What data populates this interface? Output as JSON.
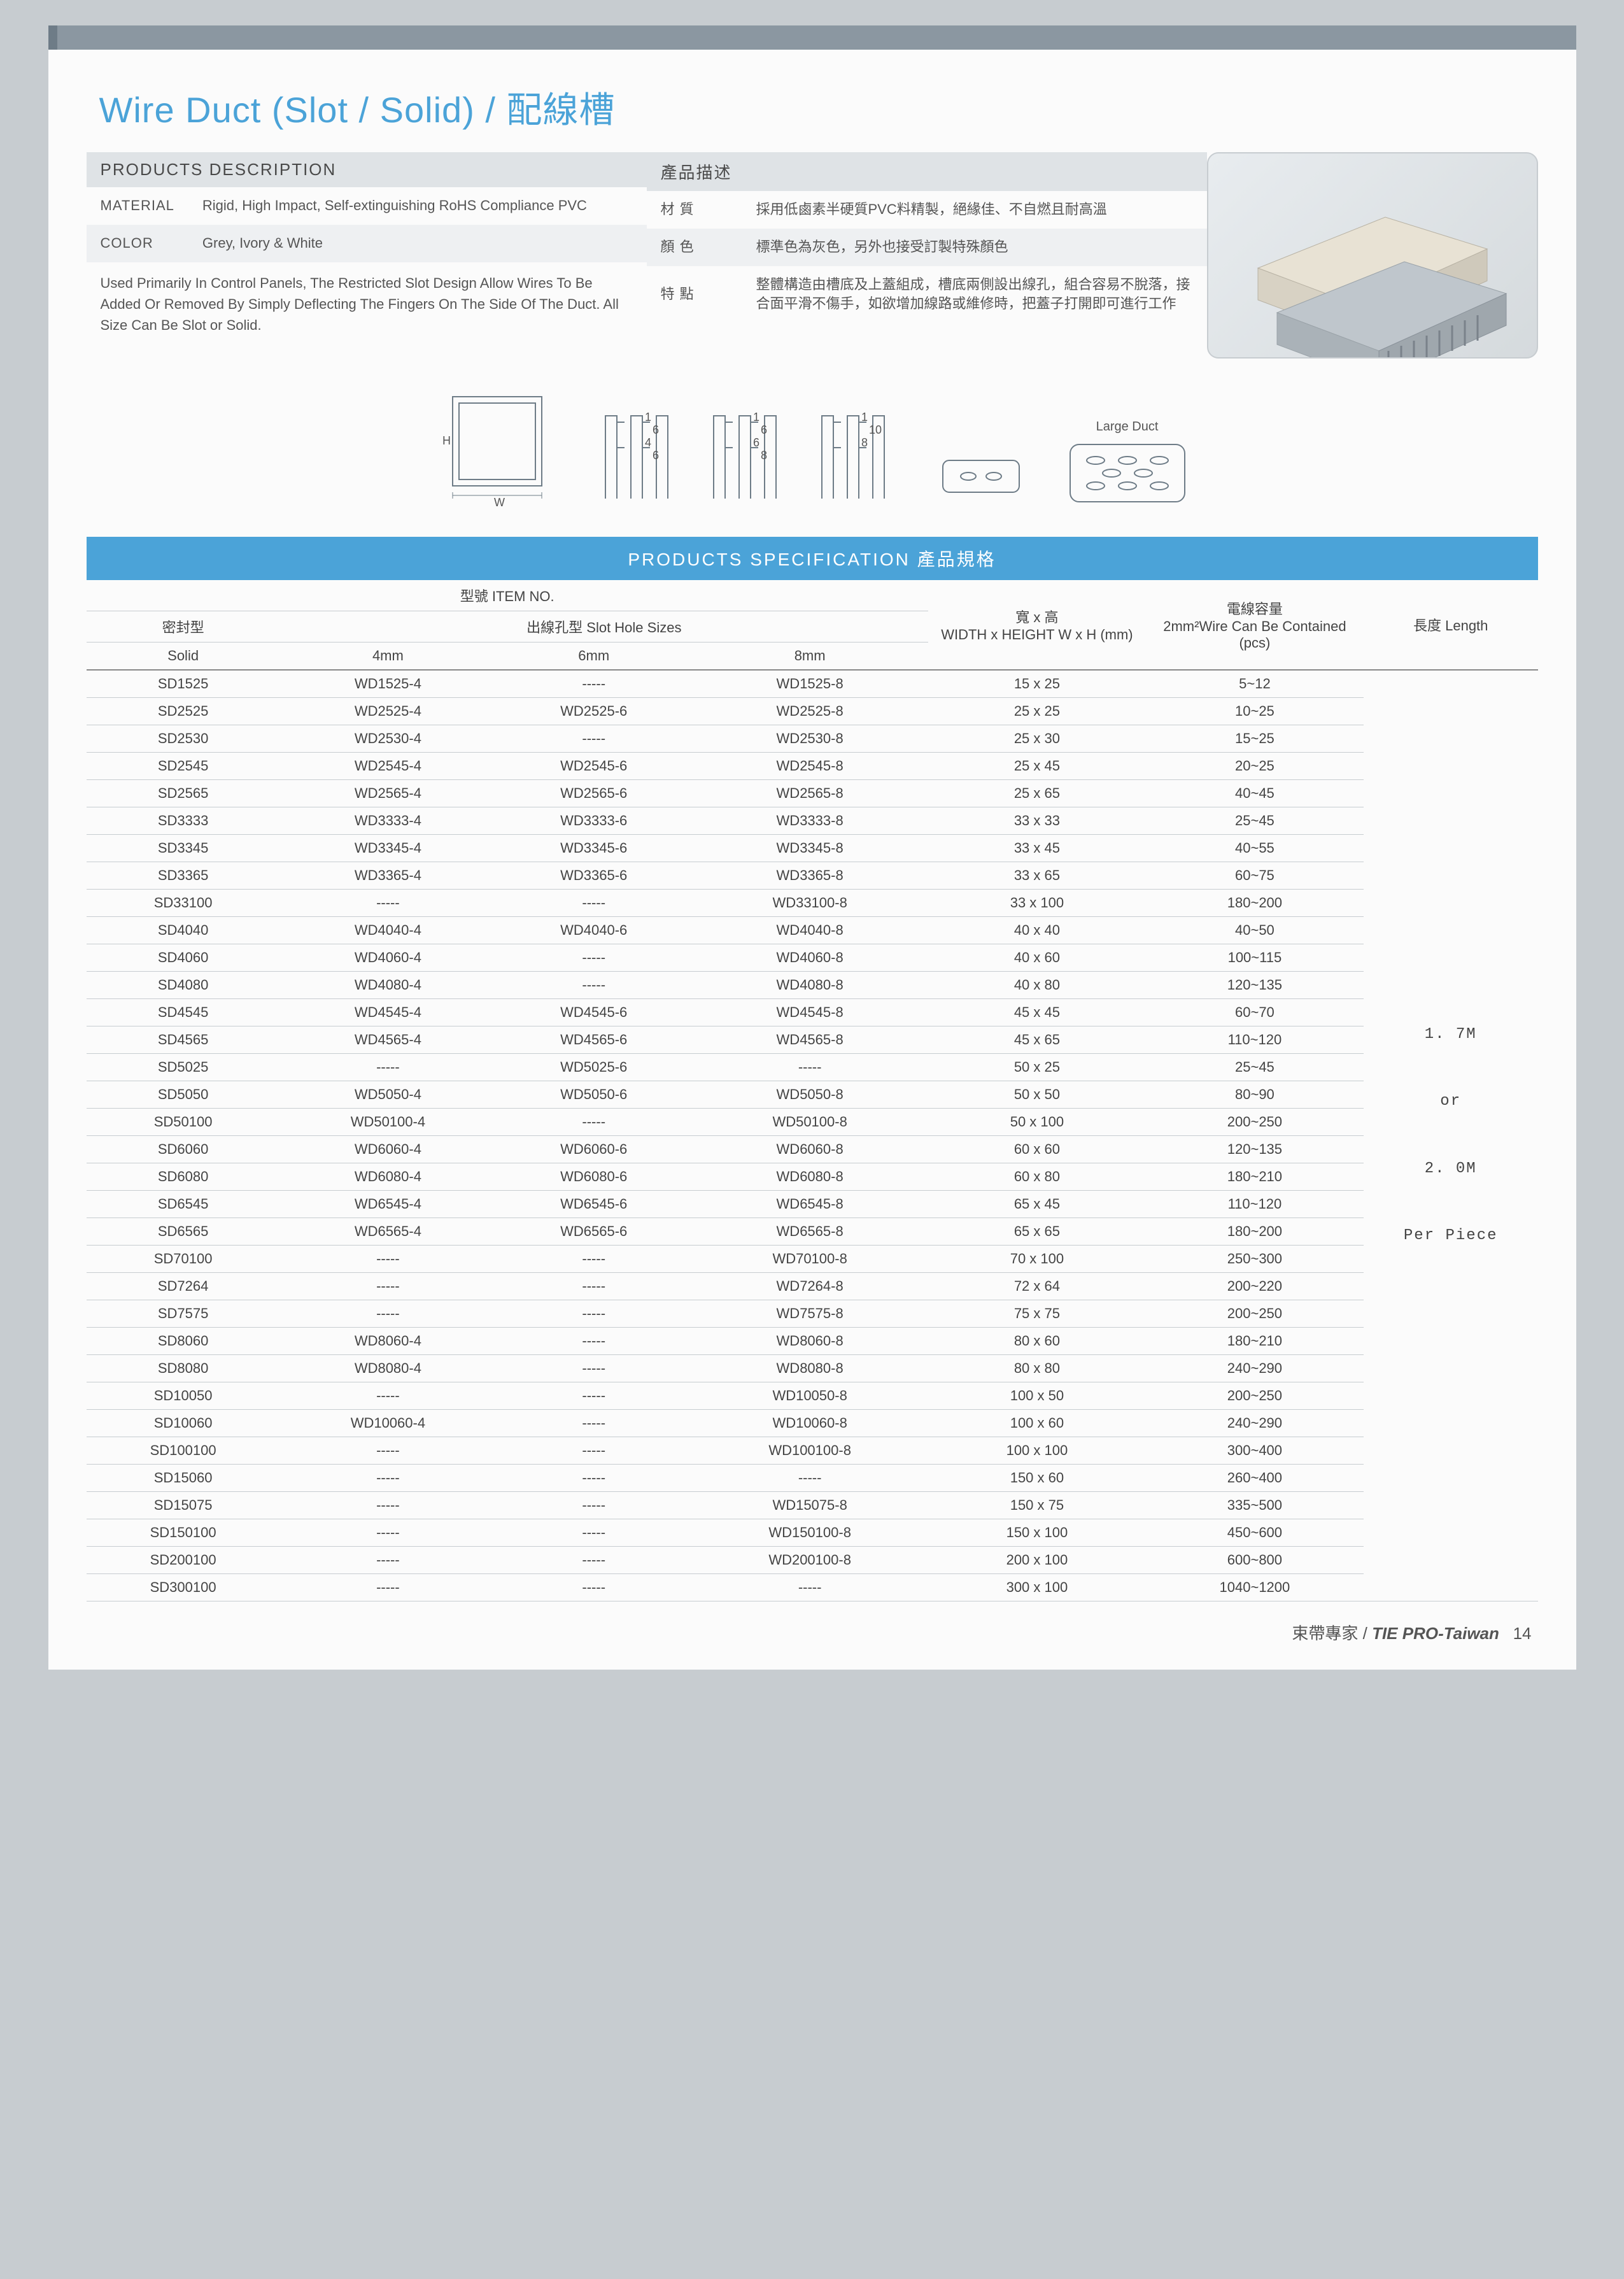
{
  "colors": {
    "accent": "#4ba3d8",
    "bar": "#8b97a1",
    "bg": "#c7ccd0",
    "headerGrey": "#dfe3e6"
  },
  "title_en": "Wire Duct (Slot / Solid)",
  "title_sep": " / ",
  "title_zh": "配線槽",
  "desc": {
    "en_header": "PRODUCTS DESCRIPTION",
    "zh_header": "產品描述",
    "rows": [
      {
        "en_lbl": "MATERIAL",
        "en_val": "Rigid, High Impact, Self-extinguishing RoHS Compliance PVC",
        "zh_lbl": "材 質",
        "zh_val": "採用低鹵素半硬質PVC料精製，絕緣佳、不自燃且耐高溫"
      },
      {
        "en_lbl": "COLOR",
        "en_val": "Grey, Ivory & White",
        "zh_lbl": "顏 色",
        "zh_val": "標準色為灰色，另外也接受訂製特殊顏色"
      }
    ],
    "en_note": "Used Primarily In Control Panels, The Restricted Slot Design Allow Wires To Be Added Or Removed By Simply Deflecting The Fingers On The Side Of The Duct. All Size Can Be Slot or Solid.",
    "zh_note_lbl": "特 點",
    "zh_note": "整體構造由槽底及上蓋組成，槽底兩側設出線孔，組合容易不脫落，接合面平滑不傷手，如欲增加線路或維修時，把蓋子打開即可進行工作"
  },
  "diagram_labels": {
    "H": "H",
    "W": "W",
    "large": "Large Duct"
  },
  "fin_dims": [
    {
      "a": "1",
      "b": "6",
      "c": "4",
      "d": "6"
    },
    {
      "a": "1",
      "b": "6",
      "c": "6",
      "d": "8"
    },
    {
      "a": "1",
      "b": "10",
      "c": "8",
      "d": ""
    }
  ],
  "spec": {
    "header": "PRODUCTS SPECIFICATION  產品規格",
    "item_no": "型號 ITEM NO.",
    "solid_h": "密封型",
    "solid_sub": "Solid",
    "slot_h": "出線孔型 Slot Hole Sizes",
    "slot_cols": [
      "4mm",
      "6mm",
      "8mm"
    ],
    "wh_h1": "寬 x 高",
    "wh_h2": "WIDTH x HEIGHT W x H (mm)",
    "cap_h1": "電線容量",
    "cap_h2": "2mm²Wire Can Be Contained (pcs)",
    "len_h": "長度 Length",
    "length_text": "1. 7M\n\nor\n\n2. 0M\n\nPer Piece",
    "rows": [
      [
        "SD1525",
        "WD1525-4",
        "-----",
        "WD1525-8",
        "15 x 25",
        "5~12"
      ],
      [
        "SD2525",
        "WD2525-4",
        "WD2525-6",
        "WD2525-8",
        "25 x 25",
        "10~25"
      ],
      [
        "SD2530",
        "WD2530-4",
        "-----",
        "WD2530-8",
        "25 x 30",
        "15~25"
      ],
      [
        "SD2545",
        "WD2545-4",
        "WD2545-6",
        "WD2545-8",
        "25 x 45",
        "20~25"
      ],
      [
        "SD2565",
        "WD2565-4",
        "WD2565-6",
        "WD2565-8",
        "25 x 65",
        "40~45"
      ],
      [
        "SD3333",
        "WD3333-4",
        "WD3333-6",
        "WD3333-8",
        "33 x 33",
        "25~45"
      ],
      [
        "SD3345",
        "WD3345-4",
        "WD3345-6",
        "WD3345-8",
        "33 x 45",
        "40~55"
      ],
      [
        "SD3365",
        "WD3365-4",
        "WD3365-6",
        "WD3365-8",
        "33 x 65",
        "60~75"
      ],
      [
        "SD33100",
        "-----",
        "-----",
        "WD33100-8",
        "33 x 100",
        "180~200"
      ],
      [
        "SD4040",
        "WD4040-4",
        "WD4040-6",
        "WD4040-8",
        "40 x 40",
        "40~50"
      ],
      [
        "SD4060",
        "WD4060-4",
        "-----",
        "WD4060-8",
        "40 x 60",
        "100~115"
      ],
      [
        "SD4080",
        "WD4080-4",
        "-----",
        "WD4080-8",
        "40 x 80",
        "120~135"
      ],
      [
        "SD4545",
        "WD4545-4",
        "WD4545-6",
        "WD4545-8",
        "45 x 45",
        "60~70"
      ],
      [
        "SD4565",
        "WD4565-4",
        "WD4565-6",
        "WD4565-8",
        "45 x 65",
        "110~120"
      ],
      [
        "SD5025",
        "-----",
        "WD5025-6",
        "-----",
        "50 x 25",
        "25~45"
      ],
      [
        "SD5050",
        "WD5050-4",
        "WD5050-6",
        "WD5050-8",
        "50 x 50",
        "80~90"
      ],
      [
        "SD50100",
        "WD50100-4",
        "-----",
        "WD50100-8",
        "50 x 100",
        "200~250"
      ],
      [
        "SD6060",
        "WD6060-4",
        "WD6060-6",
        "WD6060-8",
        "60 x 60",
        "120~135"
      ],
      [
        "SD6080",
        "WD6080-4",
        "WD6080-6",
        "WD6080-8",
        "60 x 80",
        "180~210"
      ],
      [
        "SD6545",
        "WD6545-4",
        "WD6545-6",
        "WD6545-8",
        "65 x 45",
        "110~120"
      ],
      [
        "SD6565",
        "WD6565-4",
        "WD6565-6",
        "WD6565-8",
        "65 x 65",
        "180~200"
      ],
      [
        "SD70100",
        "-----",
        "-----",
        "WD70100-8",
        "70 x 100",
        "250~300"
      ],
      [
        "SD7264",
        "-----",
        "-----",
        "WD7264-8",
        "72 x 64",
        "200~220"
      ],
      [
        "SD7575",
        "-----",
        "-----",
        "WD7575-8",
        "75 x 75",
        "200~250"
      ],
      [
        "SD8060",
        "WD8060-4",
        "-----",
        "WD8060-8",
        "80 x 60",
        "180~210"
      ],
      [
        "SD8080",
        "WD8080-4",
        "-----",
        "WD8080-8",
        "80 x 80",
        "240~290"
      ],
      [
        "SD10050",
        "-----",
        "-----",
        "WD10050-8",
        "100 x 50",
        "200~250"
      ],
      [
        "SD10060",
        "WD10060-4",
        "-----",
        "WD10060-8",
        "100 x 60",
        "240~290"
      ],
      [
        "SD100100",
        "-----",
        "-----",
        "WD100100-8",
        "100 x 100",
        "300~400"
      ],
      [
        "SD15060",
        "-----",
        "-----",
        "-----",
        "150 x 60",
        "260~400"
      ],
      [
        "SD15075",
        "-----",
        "-----",
        "WD15075-8",
        "150 x 75",
        "335~500"
      ],
      [
        "SD150100",
        "-----",
        "-----",
        "WD150100-8",
        "150 x 100",
        "450~600"
      ],
      [
        "SD200100",
        "-----",
        "-----",
        "WD200100-8",
        "200 x 100",
        "600~800"
      ],
      [
        "SD300100",
        "-----",
        "-----",
        "-----",
        "300 x 100",
        "1040~1200"
      ]
    ]
  },
  "footer": {
    "zh": "束帶專家",
    "sep": " / ",
    "brand": "TIE PRO-Taiwan",
    "page": "14"
  }
}
